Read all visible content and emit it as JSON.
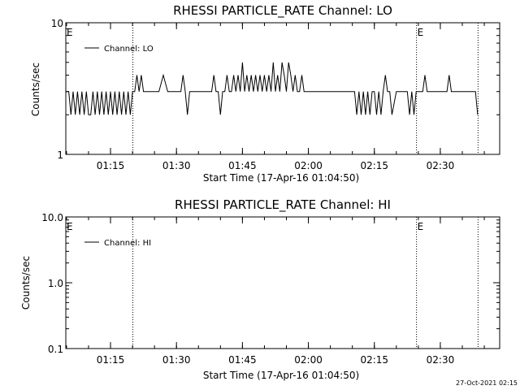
{
  "chart_data": [
    {
      "type": "line",
      "title": "RHESSI PARTICLE_RATE Channel: LO",
      "xlabel": "Start Time (17-Apr-16 01:04:50)",
      "ylabel": "Counts/sec",
      "y_scale": "log",
      "ylim": [
        1,
        10
      ],
      "y_ticks": [
        "1",
        "10"
      ],
      "xlim": [
        "01:04:50",
        "02:43:30"
      ],
      "x_ticks": [
        "01:15",
        "01:30",
        "01:45",
        "02:00",
        "02:15",
        "02:30"
      ],
      "legend": {
        "label": "Channel: LO",
        "placement": "top-left"
      },
      "event_lines": [
        "01:20:05",
        "02:24:35",
        "02:38:35"
      ],
      "event_marks": [
        {
          "text": "E",
          "at": "01:04:50"
        },
        {
          "text": "E",
          "at": "02:24:35"
        }
      ],
      "series": [
        {
          "x": [
            "01:04:50",
            "01:05:30",
            "01:06:00",
            "01:06:30",
            "01:07:00",
            "01:07:30",
            "01:08:00",
            "01:08:30",
            "01:09:00",
            "01:09:30",
            "01:10:00",
            "01:10:30",
            "01:11:00",
            "01:11:30",
            "01:12:00",
            "01:12:30",
            "01:13:00",
            "01:13:30",
            "01:14:00",
            "01:14:30",
            "01:15:00",
            "01:15:30",
            "01:16:00",
            "01:16:30",
            "01:17:00",
            "01:17:30",
            "01:18:00",
            "01:18:30",
            "01:19:00",
            "01:19:30",
            "01:20:00",
            "01:20:30",
            "01:21:00",
            "01:21:30",
            "01:22:00",
            "01:22:30",
            "01:23:00",
            "01:24:00",
            "01:25:00",
            "01:26:00",
            "01:27:00",
            "01:28:00",
            "01:29:00",
            "01:30:00",
            "01:30:30",
            "01:31:00",
            "01:31:30",
            "01:32:00",
            "01:32:30",
            "01:33:00",
            "01:33:30",
            "01:34:00",
            "01:35:00",
            "01:36:00",
            "01:37:00",
            "01:38:00",
            "01:38:30",
            "01:39:00",
            "01:39:30",
            "01:40:00",
            "01:40:30",
            "01:41:00",
            "01:41:30",
            "01:42:00",
            "01:42:30",
            "01:43:00",
            "01:43:30",
            "01:44:00",
            "01:44:30",
            "01:45:00",
            "01:45:30",
            "01:46:00",
            "01:46:30",
            "01:47:00",
            "01:47:30",
            "01:48:00",
            "01:48:30",
            "01:49:00",
            "01:49:30",
            "01:50:00",
            "01:50:30",
            "01:51:00",
            "01:51:30",
            "01:52:00",
            "01:52:30",
            "01:53:00",
            "01:53:30",
            "01:54:00",
            "01:54:30",
            "01:55:00",
            "01:55:30",
            "01:56:00",
            "01:56:30",
            "01:57:00",
            "01:57:30",
            "01:58:00",
            "01:58:30",
            "01:59:00",
            "01:59:30",
            "02:00:00",
            "02:01:00",
            "02:02:00",
            "02:03:00",
            "02:04:00",
            "02:05:00",
            "02:06:00",
            "02:07:00",
            "02:08:00",
            "02:09:00",
            "02:10:00",
            "02:10:30",
            "02:11:00",
            "02:11:30",
            "02:12:00",
            "02:12:30",
            "02:13:00",
            "02:13:30",
            "02:14:00",
            "02:14:30",
            "02:15:00",
            "02:15:30",
            "02:16:00",
            "02:16:30",
            "02:17:00",
            "02:17:30",
            "02:18:00",
            "02:18:30",
            "02:19:00",
            "02:20:00",
            "02:21:00",
            "02:22:00",
            "02:22:30",
            "02:23:00",
            "02:23:30",
            "02:24:00",
            "02:24:30",
            "02:25:00",
            "02:25:30",
            "02:26:00",
            "02:26:30",
            "02:27:00",
            "02:27:30",
            "02:28:00",
            "02:29:00",
            "02:30:00",
            "02:31:00",
            "02:31:30",
            "02:32:00",
            "02:32:30",
            "02:33:00",
            "02:34:00",
            "02:35:00",
            "02:36:00",
            "02:37:00",
            "02:38:00",
            "02:38:30"
          ],
          "y": [
            3,
            3,
            2,
            3,
            2,
            3,
            2,
            3,
            2,
            3,
            2,
            2,
            3,
            2,
            3,
            2,
            3,
            2,
            3,
            2,
            3,
            2,
            3,
            2,
            3,
            2,
            3,
            2,
            3,
            2,
            3,
            3,
            4,
            3,
            4,
            3,
            3,
            3,
            3,
            3,
            4,
            3,
            3,
            3,
            3,
            3,
            4,
            3,
            2,
            3,
            3,
            3,
            3,
            3,
            3,
            3,
            4,
            3,
            3,
            2,
            3,
            3,
            4,
            3,
            3,
            4,
            3,
            4,
            3,
            5,
            3,
            4,
            3,
            4,
            3,
            4,
            3,
            4,
            3,
            4,
            3,
            4,
            3,
            5,
            3,
            4,
            3,
            5,
            4,
            3,
            5,
            4,
            3,
            4,
            3,
            3,
            4,
            3,
            3,
            3,
            3,
            3,
            3,
            3,
            3,
            3,
            3,
            3,
            3,
            3,
            3,
            2,
            3,
            2,
            3,
            2,
            3,
            2,
            3,
            3,
            2,
            3,
            2,
            3,
            4,
            3,
            3,
            2,
            3,
            3,
            3,
            3,
            2,
            3,
            2,
            3,
            3,
            3,
            3,
            4,
            3,
            3,
            3,
            3,
            3,
            3,
            3,
            4,
            3,
            3,
            3,
            3,
            3,
            3,
            3,
            2
          ]
        }
      ]
    },
    {
      "type": "line",
      "title": "RHESSI PARTICLE_RATE Channel: HI",
      "xlabel": "Start Time (17-Apr-16 01:04:50)",
      "ylabel": "Counts/sec",
      "y_scale": "log",
      "ylim": [
        0.1,
        10
      ],
      "y_ticks": [
        "0.1",
        "1.0",
        "10.0"
      ],
      "xlim": [
        "01:04:50",
        "02:43:30"
      ],
      "x_ticks": [
        "01:15",
        "01:30",
        "01:45",
        "02:00",
        "02:15",
        "02:30"
      ],
      "legend": {
        "label": "Channel: HI",
        "placement": "top-left"
      },
      "event_lines": [
        "01:20:05",
        "02:24:35",
        "02:38:35"
      ],
      "event_marks": [
        {
          "text": "E",
          "at": "01:04:50"
        },
        {
          "text": "E",
          "at": "02:24:35"
        }
      ],
      "series": [
        {
          "x": [],
          "y": []
        }
      ]
    }
  ],
  "footer": {
    "timestamp": "27-Oct-2021 02:15"
  }
}
